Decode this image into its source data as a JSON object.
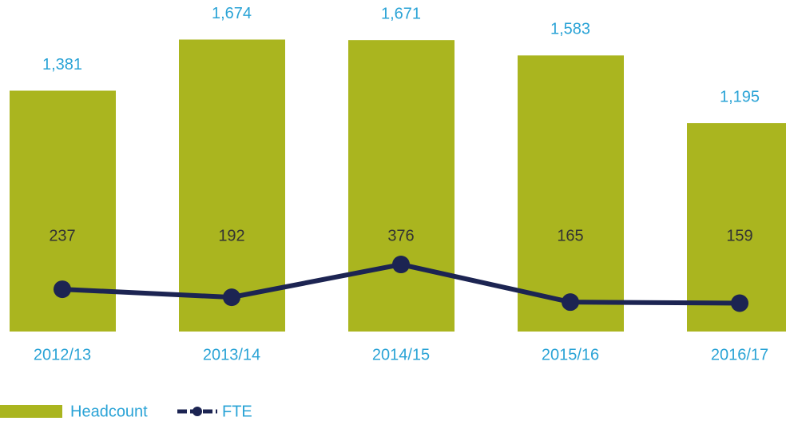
{
  "chart_data": {
    "type": "bar",
    "categories": [
      "2012/13",
      "2013/14",
      "2014/15",
      "2015/16",
      "2016/17"
    ],
    "series": [
      {
        "name": "Headcount",
        "type": "bar",
        "color": "#aab51f",
        "values": [
          1381,
          1674,
          1671,
          1583,
          1195
        ],
        "value_labels": [
          "1,381",
          "1,674",
          "1,671",
          "1,583",
          "1,195"
        ]
      },
      {
        "name": "FTE",
        "type": "line",
        "axis": "y2",
        "color": "#1c2452",
        "values": [
          237,
          192,
          376,
          165,
          159
        ]
      }
    ],
    "ylim": [
      0,
      1800
    ],
    "y2lim": [
      0,
      1760
    ],
    "legend": "bottom-left"
  }
}
